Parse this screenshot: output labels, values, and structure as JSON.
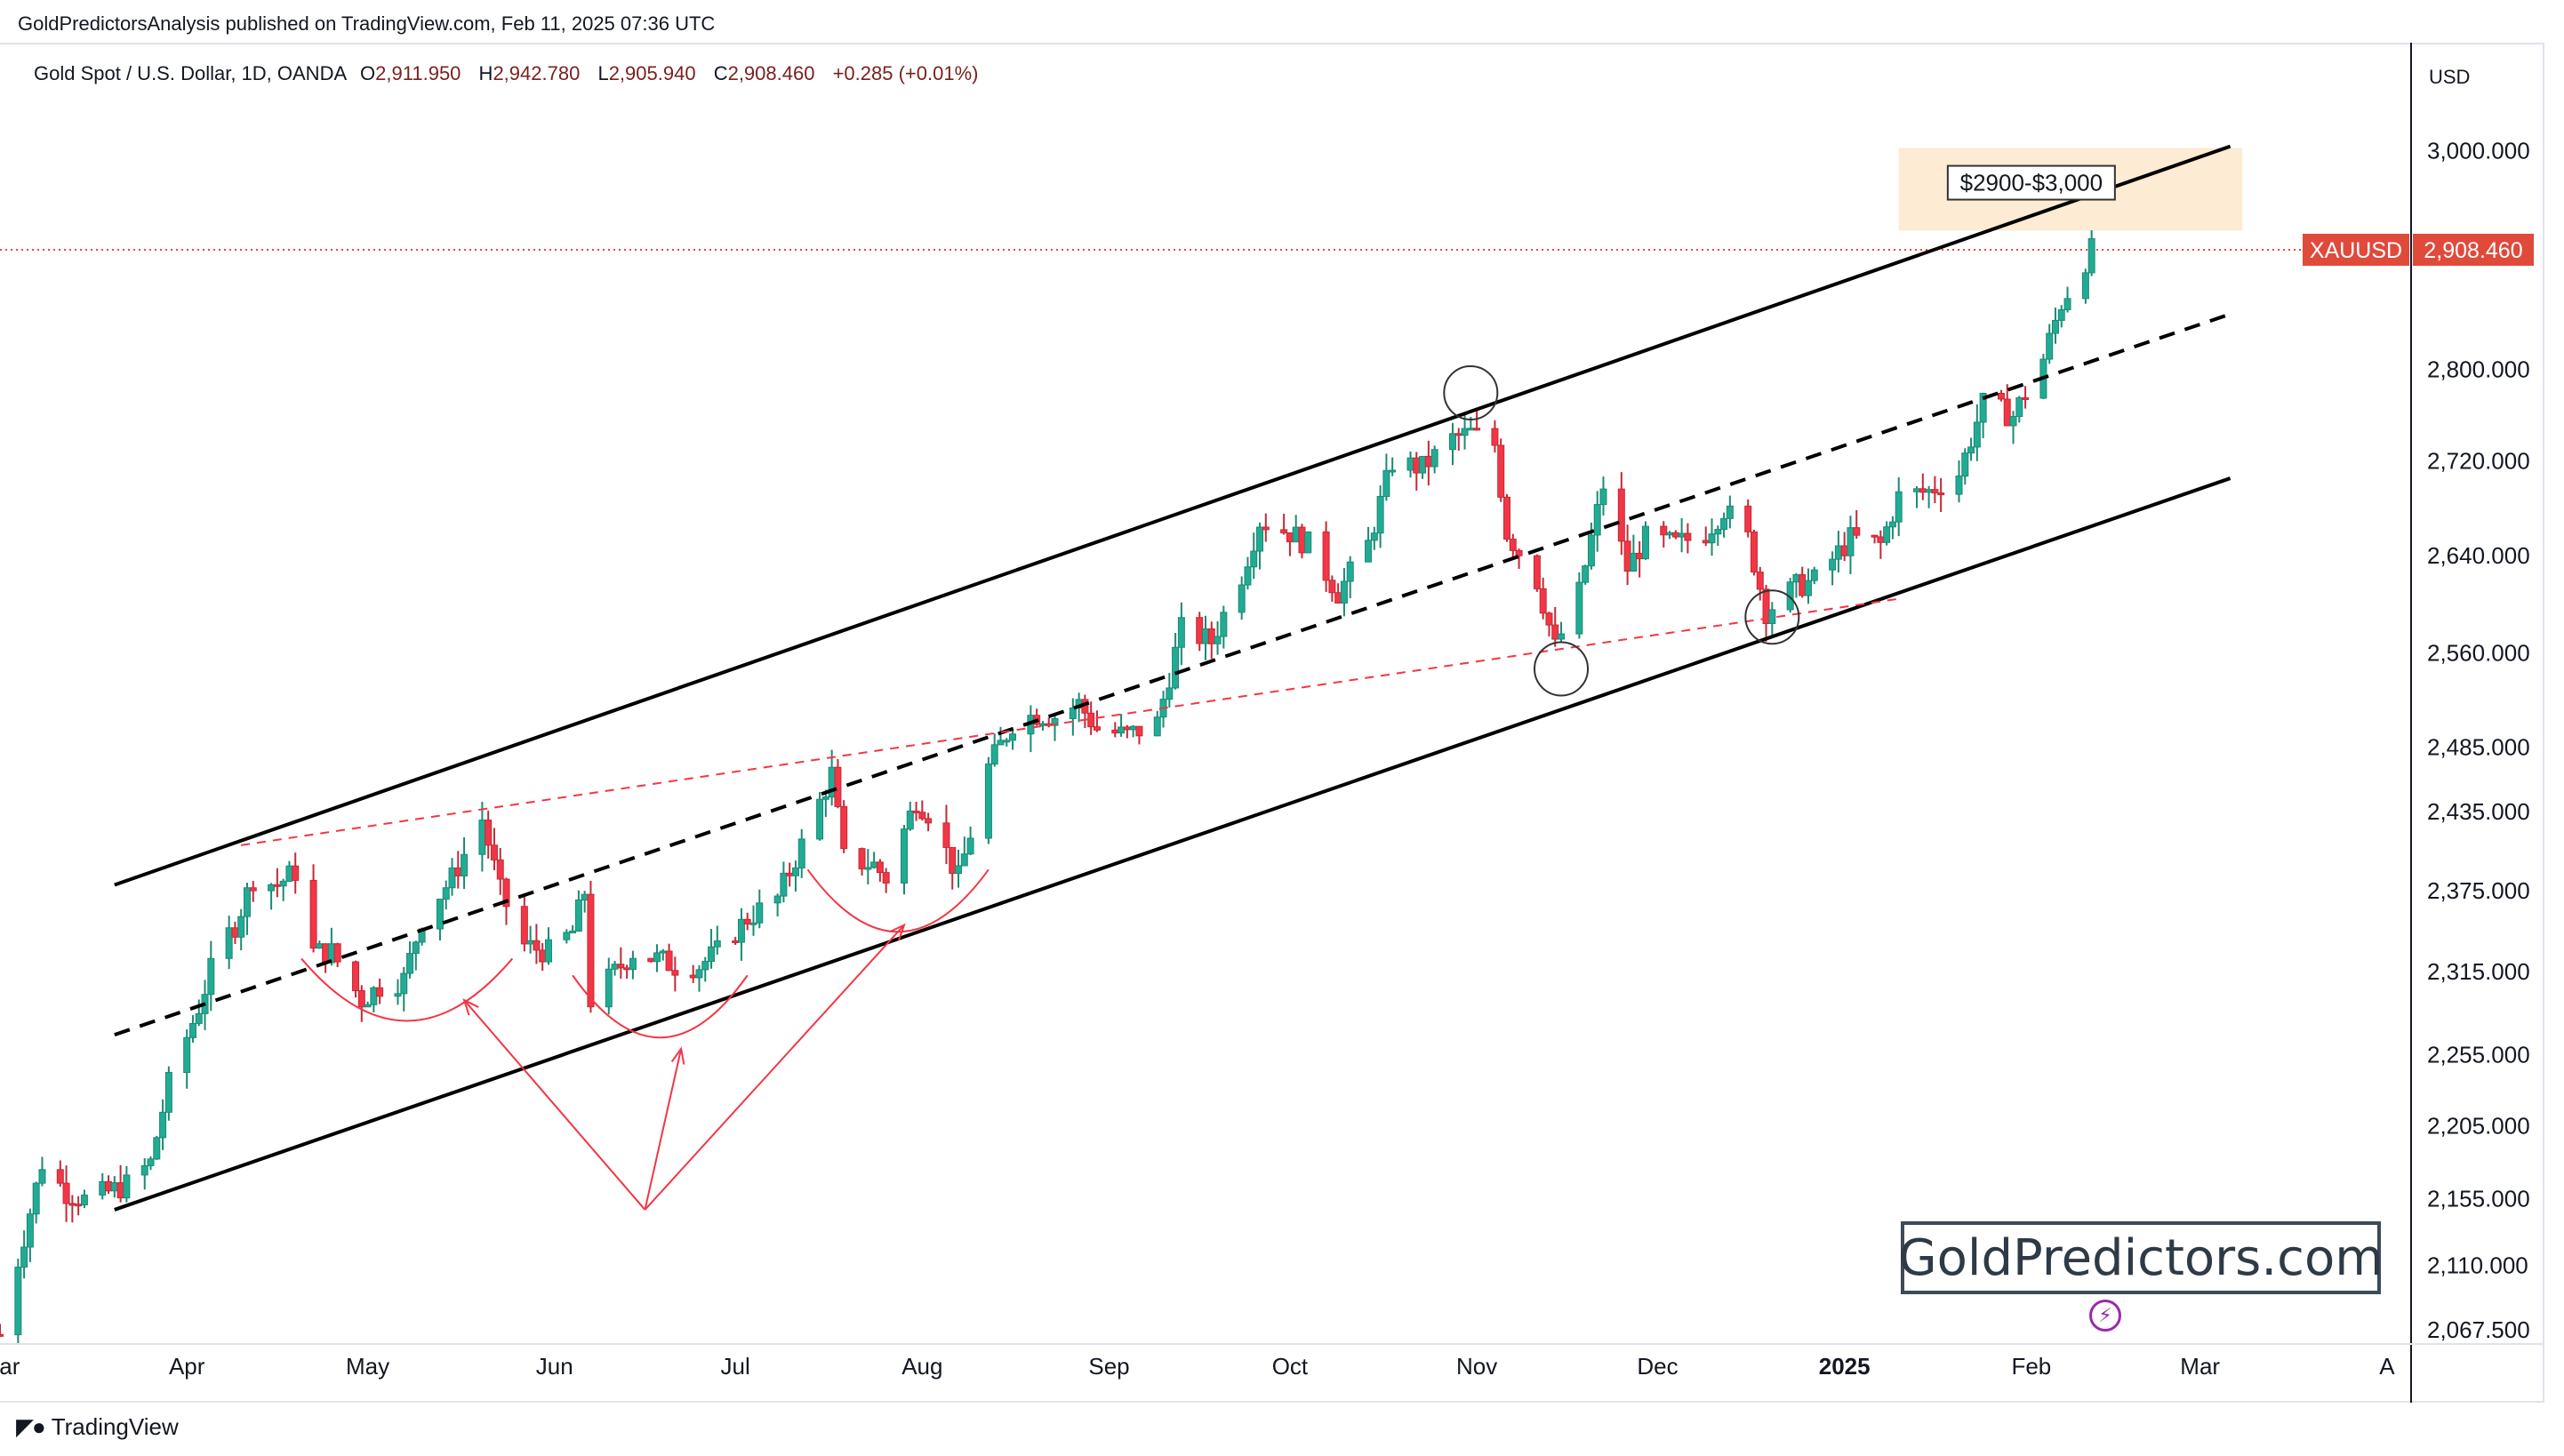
{
  "header": {
    "publisher": "GoldPredictorsAnalysis published on TradingView.com, Feb 11, 2025 07:36 UTC",
    "symbol_desc": "Gold Spot / U.S. Dollar, 1D, OANDA",
    "ohlc": {
      "o_label": "O",
      "o": "2,911.950",
      "h_label": "H",
      "h": "2,942.780",
      "l_label": "L",
      "l": "2,905.940",
      "c_label": "C",
      "c": "2,908.460",
      "change": "+0.285 (+0.01%)"
    },
    "currency": "USD"
  },
  "branding": {
    "site": "GoldPredictors.com",
    "platform": "TradingView"
  },
  "colors": {
    "up": "#22ab94",
    "down": "#f23645",
    "up_dark": "#1b8a73",
    "down_dark": "#c52836",
    "channel": "#000000",
    "trend_red": "#f23645",
    "price_badge": "#e04a3b",
    "highlight": "#fdebd3"
  },
  "chart_data": {
    "type": "candlestick",
    "title": "",
    "xlabel": "",
    "ylabel": "",
    "x_ticks": [
      "Mar",
      "Apr",
      "May",
      "Jun",
      "Jul",
      "Aug",
      "Sep",
      "Oct",
      "Nov",
      "Dec",
      "2025",
      "Feb",
      "Mar",
      "A"
    ],
    "y_ticks": [
      "3,000.000",
      "2,800.000",
      "2,720.000",
      "2,640.000",
      "2,560.000",
      "2,485.000",
      "2,435.000",
      "2,375.000",
      "2,315.000",
      "2,255.000",
      "2,205.000",
      "2,155.000",
      "2,110.000",
      "2,067.500"
    ],
    "y_scale": "log",
    "ylim": [
      2060,
      3060
    ],
    "xlim": [
      "2024-03-01",
      "2025-04-05"
    ],
    "last_price": {
      "symbol": "XAUUSD",
      "value": "2,908.460"
    },
    "target_zone": {
      "label": "$2900-$3,000",
      "from": 2900,
      "to": 3000
    },
    "price_path": [
      [
        "2024-03-01",
        2065
      ],
      [
        "2024-03-05",
        2130
      ],
      [
        "2024-03-08",
        2180
      ],
      [
        "2024-03-12",
        2160
      ],
      [
        "2024-03-15",
        2155
      ],
      [
        "2024-03-19",
        2160
      ],
      [
        "2024-03-22",
        2165
      ],
      [
        "2024-03-26",
        2180
      ],
      [
        "2024-03-29",
        2235
      ],
      [
        "2024-04-03",
        2290
      ],
      [
        "2024-04-06",
        2330
      ],
      [
        "2024-04-09",
        2350
      ],
      [
        "2024-04-12",
        2385
      ],
      [
        "2024-04-16",
        2380
      ],
      [
        "2024-04-19",
        2390
      ],
      [
        "2024-04-22",
        2330
      ],
      [
        "2024-04-25",
        2330
      ],
      [
        "2024-04-30",
        2295
      ],
      [
        "2024-05-03",
        2305
      ],
      [
        "2024-05-07",
        2310
      ],
      [
        "2024-05-10",
        2355
      ],
      [
        "2024-05-15",
        2385
      ],
      [
        "2024-05-20",
        2430
      ],
      [
        "2024-05-23",
        2375
      ],
      [
        "2024-05-27",
        2335
      ],
      [
        "2024-05-31",
        2330
      ],
      [
        "2024-06-04",
        2345
      ],
      [
        "2024-06-06",
        2375
      ],
      [
        "2024-06-07",
        2295
      ],
      [
        "2024-06-11",
        2315
      ],
      [
        "2024-06-14",
        2330
      ],
      [
        "2024-06-18",
        2325
      ],
      [
        "2024-06-21",
        2320
      ],
      [
        "2024-06-25",
        2320
      ],
      [
        "2024-06-28",
        2330
      ],
      [
        "2024-07-03",
        2355
      ],
      [
        "2024-07-08",
        2370
      ],
      [
        "2024-07-12",
        2410
      ],
      [
        "2024-07-17",
        2465
      ],
      [
        "2024-07-19",
        2400
      ],
      [
        "2024-07-24",
        2395
      ],
      [
        "2024-07-26",
        2385
      ],
      [
        "2024-07-31",
        2445
      ],
      [
        "2024-08-02",
        2435
      ],
      [
        "2024-08-07",
        2385
      ],
      [
        "2024-08-12",
        2470
      ],
      [
        "2024-08-16",
        2505
      ],
      [
        "2024-08-20",
        2512
      ],
      [
        "2024-08-23",
        2510
      ],
      [
        "2024-08-27",
        2520
      ],
      [
        "2024-08-30",
        2500
      ],
      [
        "2024-09-04",
        2495
      ],
      [
        "2024-09-09",
        2505
      ],
      [
        "2024-09-13",
        2580
      ],
      [
        "2024-09-18",
        2570
      ],
      [
        "2024-09-23",
        2625
      ],
      [
        "2024-09-26",
        2670
      ],
      [
        "2024-10-01",
        2660
      ],
      [
        "2024-10-04",
        2650
      ],
      [
        "2024-10-09",
        2610
      ],
      [
        "2024-10-14",
        2650
      ],
      [
        "2024-10-18",
        2720
      ],
      [
        "2024-10-23",
        2715
      ],
      [
        "2024-10-28",
        2740
      ],
      [
        "2024-10-31",
        2745
      ],
      [
        "2024-11-04",
        2735
      ],
      [
        "2024-11-06",
        2660
      ],
      [
        "2024-11-11",
        2620
      ],
      [
        "2024-11-14",
        2565
      ],
      [
        "2024-11-18",
        2610
      ],
      [
        "2024-11-22",
        2700
      ],
      [
        "2024-11-26",
        2630
      ],
      [
        "2024-11-29",
        2655
      ],
      [
        "2024-12-04",
        2650
      ],
      [
        "2024-12-09",
        2660
      ],
      [
        "2024-12-12",
        2680
      ],
      [
        "2024-12-16",
        2655
      ],
      [
        "2024-12-19",
        2595
      ],
      [
        "2024-12-24",
        2615
      ],
      [
        "2024-12-27",
        2620
      ],
      [
        "2025-01-02",
        2655
      ],
      [
        "2025-01-07",
        2650
      ],
      [
        "2025-01-10",
        2690
      ],
      [
        "2025-01-15",
        2695
      ],
      [
        "2025-01-20",
        2710
      ],
      [
        "2025-01-24",
        2770
      ],
      [
        "2025-01-29",
        2760
      ],
      [
        "2025-02-03",
        2810
      ],
      [
        "2025-02-06",
        2860
      ],
      [
        "2025-02-11",
        2908
      ]
    ],
    "channel_lines": [
      {
        "style": "solid",
        "from": [
          "2024-03-20",
          2380
        ],
        "to": [
          "2025-03-06",
          3005
        ]
      },
      {
        "style": "dashed",
        "from": [
          "2024-03-20",
          2270
        ],
        "to": [
          "2025-03-06",
          2850
        ]
      },
      {
        "style": "solid",
        "from": [
          "2024-03-20",
          2148
        ],
        "to": [
          "2025-03-06",
          2706
        ]
      }
    ],
    "trend_line": {
      "style": "dashed",
      "color": "red",
      "from": [
        "2024-04-10",
        2410
      ],
      "to": [
        "2025-01-10",
        2605
      ]
    },
    "circles": [
      [
        "2024-10-31",
        2780
      ],
      [
        "2024-11-15",
        2548
      ],
      [
        "2024-12-20",
        2590
      ]
    ],
    "arcs": [
      {
        "from": "2024-04-20",
        "to": "2024-05-25",
        "bottom": 2280
      },
      {
        "from": "2024-06-04",
        "to": "2024-07-03",
        "bottom": 2268
      },
      {
        "from": "2024-07-13",
        "to": "2024-08-12",
        "bottom": 2345
      }
    ],
    "arrows_from": [
      "2024-06-16",
      2148
    ],
    "arrows_to": [
      [
        "2024-05-17",
        2295
      ],
      [
        "2024-06-22",
        2260
      ],
      [
        "2024-07-29",
        2350
      ]
    ]
  }
}
